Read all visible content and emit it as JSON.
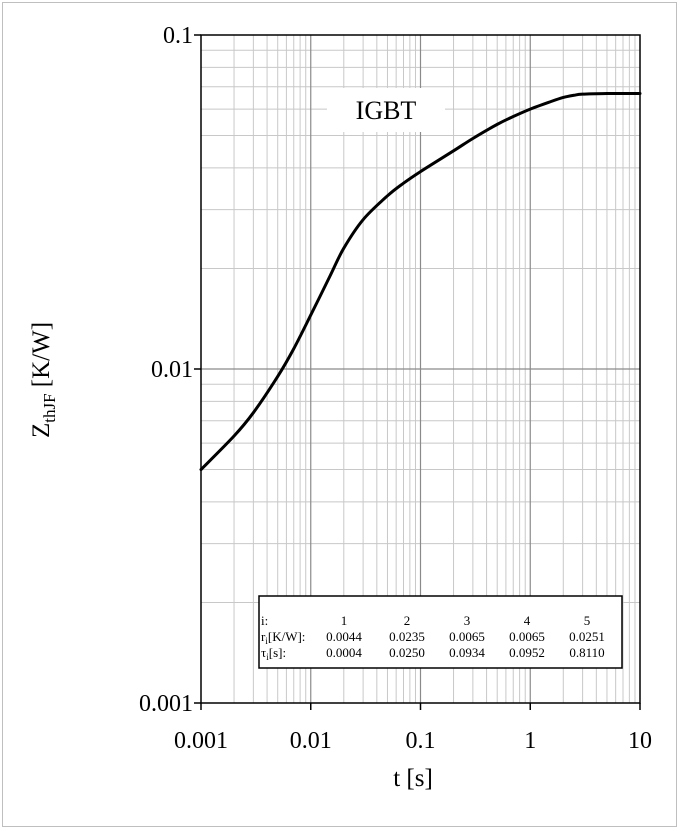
{
  "chart_data": {
    "type": "line",
    "xscale": "log",
    "yscale": "log",
    "xlim": [
      0.001,
      10
    ],
    "ylim": [
      0.001,
      0.1
    ],
    "grid": true,
    "x_ticks": [
      "0.001",
      "0.01",
      "0.1",
      "1",
      "10"
    ],
    "y_ticks": [
      "0.001",
      "0.01",
      "0.1"
    ],
    "xlabel": "t [s]",
    "ylabel": {
      "main": "Z",
      "sub": "thJF",
      "unit": " [K/W]"
    },
    "annotation": "IGBT",
    "series": [
      {
        "x": [
          0.001,
          0.002,
          0.003,
          0.005,
          0.007,
          0.01,
          0.015,
          0.02,
          0.03,
          0.05,
          0.07,
          0.1,
          0.2,
          0.3,
          0.5,
          0.7,
          1,
          1.5,
          2,
          2.5,
          3,
          5,
          7,
          10
        ],
        "y": [
          0.005,
          0.0063,
          0.0074,
          0.0095,
          0.0115,
          0.0145,
          0.019,
          0.023,
          0.028,
          0.033,
          0.036,
          0.039,
          0.045,
          0.049,
          0.054,
          0.057,
          0.06,
          0.063,
          0.065,
          0.066,
          0.0665,
          0.0668,
          0.0668,
          0.0668
        ]
      }
    ],
    "parameter_table": {
      "headers": [
        "i:",
        "1",
        "2",
        "3",
        "4",
        "5"
      ],
      "rows": [
        {
          "label_main": "r",
          "label_sub": "i",
          "label_rest": "[K/W]:",
          "values": [
            "0.0044",
            "0.0235",
            "0.0065",
            "0.0065",
            "0.0251"
          ]
        },
        {
          "label_main": "τ",
          "label_sub": "i",
          "label_rest": "[s]:",
          "values": [
            "0.0004",
            "0.0250",
            "0.0934",
            "0.0952",
            "0.8110"
          ]
        }
      ]
    }
  }
}
